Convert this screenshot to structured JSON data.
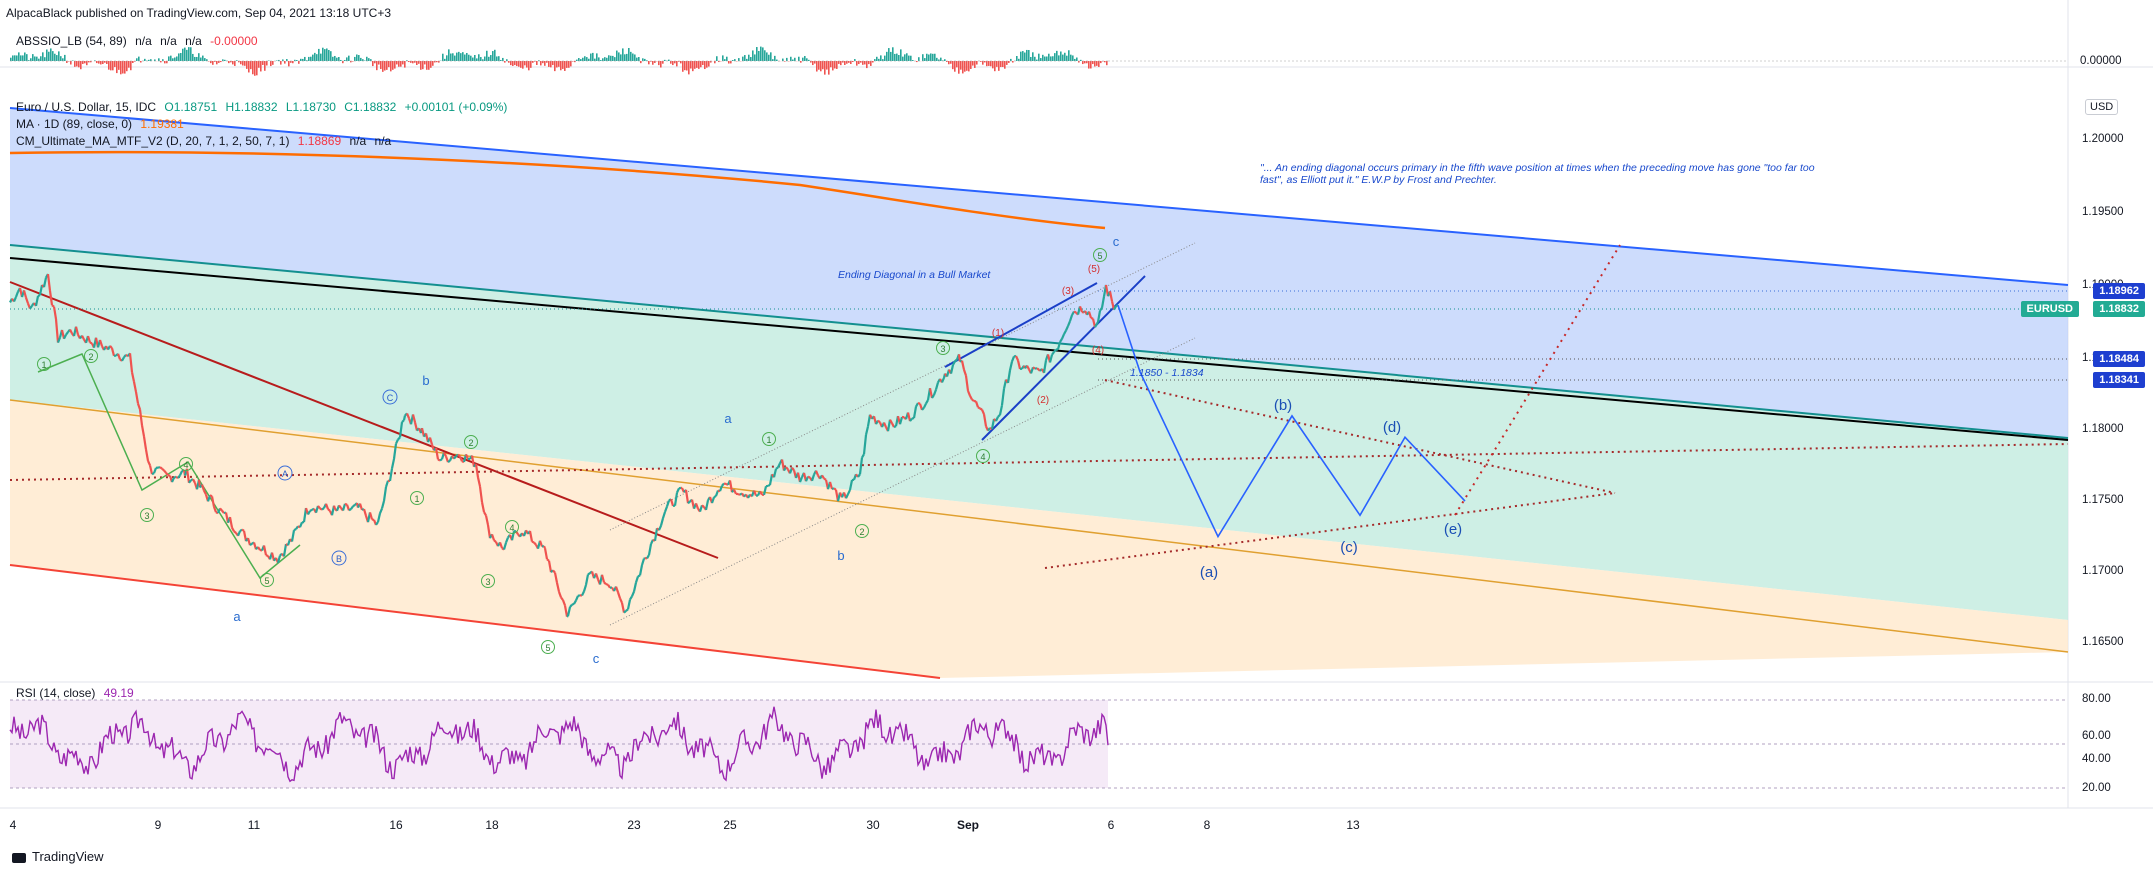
{
  "header": {
    "published": "AlpacaBlack published on TradingView.com, Sep 04, 2021 13:18 UTC+3"
  },
  "indicator_top": {
    "name": "ABSSIO_LB (54, 89)",
    "v1": "n/a",
    "v2": "n/a",
    "v3": "n/a",
    "v4": "-0.00000",
    "scale_label": "0.00000"
  },
  "main_legend": {
    "symbol": "Euro / U.S. Dollar, 15, IDC",
    "o": "O1.18751",
    "h": "H1.18832",
    "l": "L1.18730",
    "c": "C1.18832",
    "chg": "+0.00101 (+0.09%)",
    "ma_label": "MA · 1D (89, close, 0)",
    "ma_value": "1.19381",
    "cm_label": "CM_Ultimate_MA_MTF_V2 (D, 20, 7, 1, 2, 50, 7, 1)",
    "cm_value": "1.18869",
    "cm_na1": "n/a",
    "cm_na2": "n/a"
  },
  "currency": "USD",
  "price_axis": [
    "1.20000",
    "1.19500",
    "1.19000",
    "1.18500",
    "1.18000",
    "1.17500",
    "1.17000",
    "1.16500"
  ],
  "price_tags": {
    "high": "1.18962",
    "symbol": "EURUSD",
    "last": "1.18832",
    "lvl1": "1.18484",
    "lvl2": "1.18341"
  },
  "quote_text": "\"... An ending diagonal occurs primary in the fifth wave position at times when the preceding move has gone \"too far too fast\", as Elliott put it.\" E.W.P by Frost and Prechter.",
  "annotations": {
    "ending_diagonal": "Ending Diagonal in a Bull Market",
    "zone": "1.1850 - 1.1834"
  },
  "rsi": {
    "label": "RSI (14, close)",
    "value": "49.19",
    "axis": [
      "80.00",
      "60.00",
      "40.00",
      "20.00"
    ]
  },
  "time_axis": [
    "4",
    "9",
    "11",
    "16",
    "18",
    "23",
    "25",
    "30",
    "Sep",
    "6",
    "8",
    "13"
  ],
  "wave_labels": {
    "l1": "1",
    "l2": "2",
    "l3": "3",
    "l4": "4",
    "l5": "5",
    "a": "a",
    "b": "b",
    "c": "c",
    "A": "A",
    "B": "B",
    "C": "C",
    "p1": "(1)",
    "p2": "(2)",
    "p3": "(3)",
    "p4": "(4)",
    "p5": "(5)",
    "pa": "(a)",
    "pb": "(b)",
    "pc": "(c)",
    "pd": "(d)",
    "pe": "(e)"
  },
  "brand": "TradingView",
  "chart_data": {
    "type": "line",
    "symbol": "EURUSD",
    "timeframe": "15",
    "y_axis_range": [
      1.163,
      1.2025
    ],
    "y_ticks": [
      1.2,
      1.195,
      1.19,
      1.185,
      1.18,
      1.175,
      1.17,
      1.165
    ],
    "x_ticks": [
      "4",
      "9",
      "11",
      "16",
      "18",
      "23",
      "25",
      "30",
      "Sep",
      "6",
      "8",
      "13"
    ],
    "price_path": [
      [
        0,
        1.1885
      ],
      [
        10,
        1.1895
      ],
      [
        22,
        1.188
      ],
      [
        38,
        1.1905
      ],
      [
        48,
        1.186
      ],
      [
        62,
        1.1865
      ],
      [
        80,
        1.1858
      ],
      [
        100,
        1.1852
      ],
      [
        120,
        1.1845
      ],
      [
        140,
        1.1768
      ],
      [
        158,
        1.1762
      ],
      [
        175,
        1.1765
      ],
      [
        190,
        1.1755
      ],
      [
        210,
        1.1738
      ],
      [
        232,
        1.1722
      ],
      [
        252,
        1.1712
      ],
      [
        268,
        1.1705
      ],
      [
        282,
        1.1718
      ],
      [
        300,
        1.1742
      ],
      [
        325,
        1.1738
      ],
      [
        348,
        1.174
      ],
      [
        368,
        1.1728
      ],
      [
        384,
        1.1775
      ],
      [
        395,
        1.1808
      ],
      [
        412,
        1.1795
      ],
      [
        430,
        1.1775
      ],
      [
        450,
        1.1778
      ],
      [
        466,
        1.1772
      ],
      [
        478,
        1.1725
      ],
      [
        492,
        1.1712
      ],
      [
        512,
        1.1725
      ],
      [
        535,
        1.171
      ],
      [
        558,
        1.1665
      ],
      [
        580,
        1.1692
      ],
      [
        600,
        1.1688
      ],
      [
        616,
        1.1668
      ],
      [
        635,
        1.1705
      ],
      [
        655,
        1.1738
      ],
      [
        672,
        1.1752
      ],
      [
        692,
        1.1738
      ],
      [
        712,
        1.1758
      ],
      [
        732,
        1.1752
      ],
      [
        752,
        1.1748
      ],
      [
        770,
        1.1772
      ],
      [
        790,
        1.1762
      ],
      [
        810,
        1.1765
      ],
      [
        832,
        1.1745
      ],
      [
        850,
        1.1765
      ],
      [
        860,
        1.1805
      ],
      [
        880,
        1.1798
      ],
      [
        900,
        1.1805
      ],
      [
        918,
        1.1818
      ],
      [
        935,
        1.1835
      ],
      [
        950,
        1.1845
      ],
      [
        962,
        1.1818
      ],
      [
        980,
        1.1795
      ],
      [
        990,
        1.1808
      ],
      [
        1002,
        1.1845
      ],
      [
        1015,
        1.1838
      ],
      [
        1030,
        1.1835
      ],
      [
        1048,
        1.1855
      ],
      [
        1062,
        1.1878
      ],
      [
        1075,
        1.1882
      ],
      [
        1088,
        1.1868
      ],
      [
        1096,
        1.1896
      ],
      [
        1104,
        1.1882
      ],
      [
        1108,
        1.1883
      ]
    ],
    "price_path_x_note": "",
    "projection": [
      [
        1108,
        1.1883
      ],
      [
        1130,
        1.1836
      ],
      [
        1208,
        1.172
      ],
      [
        1282,
        1.1805
      ],
      [
        1350,
        1.1735
      ],
      [
        1395,
        1.179
      ],
      [
        1455,
        1.1745
      ]
    ],
    "projection_labels": [
      "(a)",
      "(b)",
      "(c)",
      "(d)",
      "(e)"
    ],
    "levels": [
      1.18962,
      1.18832,
      1.18484,
      1.18341
    ],
    "ma_1d": 1.19381,
    "cm_ma": 1.18869,
    "rsi": {
      "period": 14,
      "last": 49.19,
      "ylim": [
        0,
        100
      ],
      "bands": [
        80,
        50,
        20
      ]
    }
  }
}
